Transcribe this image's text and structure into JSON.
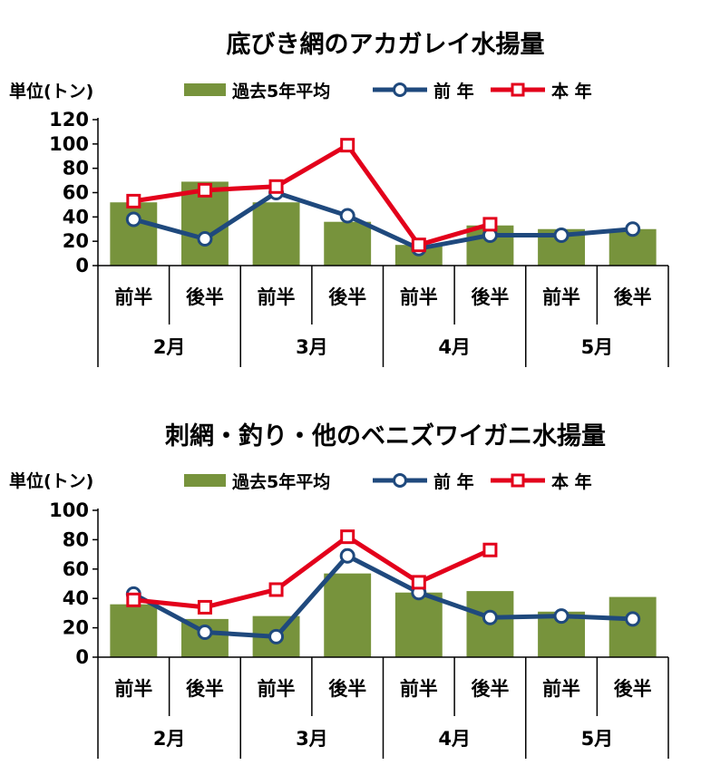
{
  "chart_data": [
    {
      "type": "bar",
      "title": "底びき網のアカガレイ水揚量",
      "unit_label": "単位(トン)",
      "ylim": [
        0,
        120
      ],
      "yticks": [
        0,
        20,
        40,
        60,
        80,
        100,
        120
      ],
      "categories": [
        "前半",
        "後半",
        "前半",
        "後半",
        "前半",
        "後半",
        "前半",
        "後半"
      ],
      "groups": [
        "2月",
        "3月",
        "4月",
        "5月"
      ],
      "series": [
        {
          "name": "過去5年平均",
          "kind": "bar",
          "color": "#77933c",
          "values": [
            52,
            69,
            52,
            36,
            17,
            33,
            30,
            30
          ]
        },
        {
          "name": "前 年",
          "kind": "line",
          "color": "#1f497d",
          "marker": "circle",
          "values": [
            38,
            22,
            60,
            41,
            14,
            25,
            25,
            30
          ]
        },
        {
          "name": "本 年",
          "kind": "line",
          "color": "#e3001b",
          "marker": "square",
          "values": [
            53,
            62,
            65,
            99,
            17,
            34,
            null,
            null
          ]
        }
      ]
    },
    {
      "type": "bar",
      "title": "刺網・釣り・他のベニズワイガニ水揚量",
      "unit_label": "単位(トン)",
      "ylim": [
        0,
        100
      ],
      "yticks": [
        0,
        20,
        40,
        60,
        80,
        100
      ],
      "categories": [
        "前半",
        "後半",
        "前半",
        "後半",
        "前半",
        "後半",
        "前半",
        "後半"
      ],
      "groups": [
        "2月",
        "3月",
        "4月",
        "5月"
      ],
      "series": [
        {
          "name": "過去5年平均",
          "kind": "bar",
          "color": "#77933c",
          "values": [
            36,
            26,
            28,
            57,
            44,
            45,
            31,
            41
          ]
        },
        {
          "name": "前 年",
          "kind": "line",
          "color": "#1f497d",
          "marker": "circle",
          "values": [
            43,
            17,
            14,
            69,
            44,
            27,
            28,
            26
          ]
        },
        {
          "name": "本 年",
          "kind": "line",
          "color": "#e3001b",
          "marker": "square",
          "values": [
            39,
            34,
            46,
            82,
            51,
            73,
            null,
            null
          ]
        }
      ]
    }
  ]
}
